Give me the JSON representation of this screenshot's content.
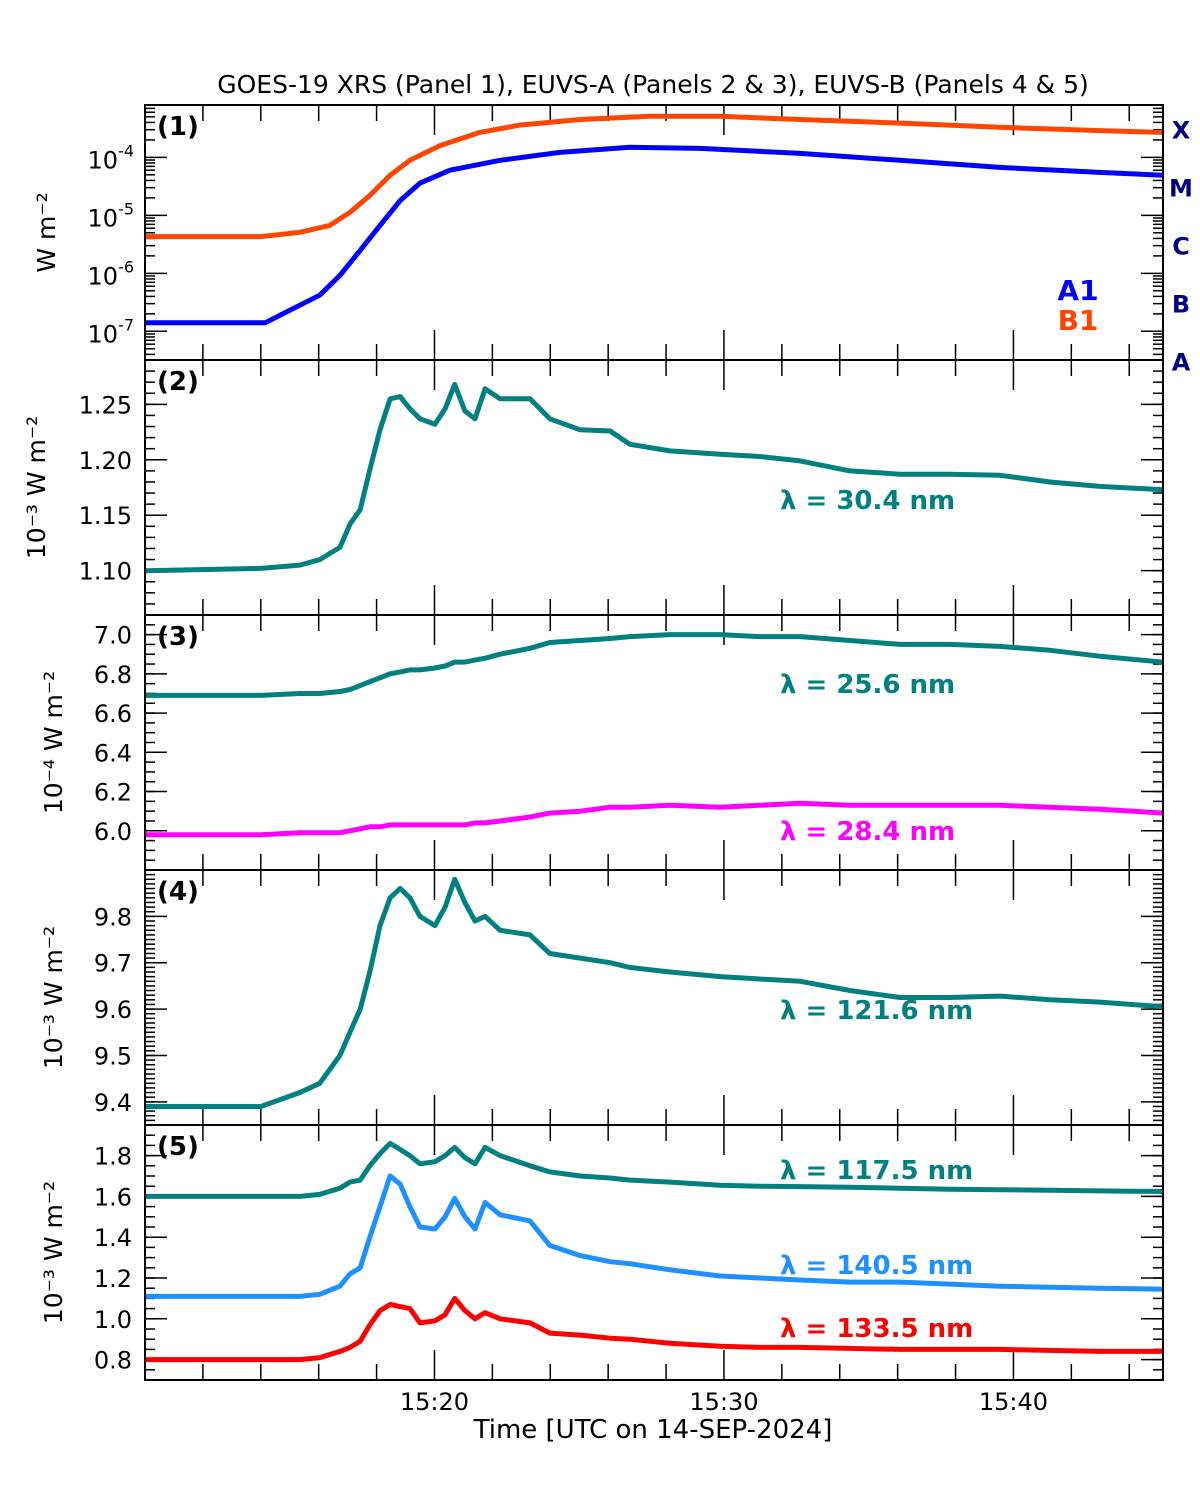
{
  "chart_data": {
    "type": "line",
    "title": "GOES-19 XRS (Panel 1), EUVS-A (Panels 2 & 3), EUVS-B (Panels 4 & 5)",
    "xlabel": "Time [UTC on 14-SEP-2024]",
    "xlim": [
      "15:10:00",
      "15:45:10"
    ],
    "xtick_labels": [
      "15:20",
      "15:30",
      "15:40"
    ],
    "xticks": [
      "15:20:00",
      "15:30:00",
      "15:40:00"
    ],
    "grid": false,
    "panels": [
      {
        "panel_label": "(1)",
        "ylabel": "W m⁻²",
        "yscale": "log",
        "ylim": [
          3.2e-08,
          0.0008
        ],
        "ytick_exponents": [
          -4,
          -5,
          -6,
          -7
        ],
        "ytick_base": "10",
        "flare_classes": [
          "X",
          "M",
          "C",
          "B",
          "A"
        ],
        "legend": [
          "A1",
          "B1"
        ],
        "series": [
          {
            "name": "B1",
            "color": "#ff4500",
            "x": [
              "15:10:00",
              "15:14:00",
              "15:15:21",
              "15:16:23",
              "15:17:05",
              "15:17:46",
              "15:18:28",
              "15:19:09",
              "15:20:12",
              "15:21:34",
              "15:22:57",
              "15:25:02",
              "15:27:26",
              "15:29:52",
              "15:32:38",
              "15:36:05",
              "15:39:32",
              "15:42:59",
              "15:45:10"
            ],
            "y": [
              4.3e-06,
              4.3e-06,
              5.1e-06,
              6.7e-06,
              1.13e-05,
              2.2e-05,
              4.9e-05,
              8.9e-05,
              0.00016,
              0.00027,
              0.00036,
              0.00045,
              0.00051,
              0.00051,
              0.00045,
              0.00039,
              0.00033,
              0.00029,
              0.00027
            ]
          },
          {
            "name": "A1",
            "color": "#0000ff",
            "x": [
              "15:10:00",
              "15:14:09",
              "15:15:00",
              "15:16:02",
              "15:16:44",
              "15:17:26",
              "15:18:07",
              "15:18:49",
              "15:19:30",
              "15:20:32",
              "15:22:16",
              "15:24:20",
              "15:26:45",
              "15:29:10",
              "15:32:38",
              "15:36:05",
              "15:39:32",
              "15:42:59",
              "15:45:10"
            ],
            "y": [
              1.4e-07,
              1.4e-07,
              2.3e-07,
              4.2e-07,
              9.2e-07,
              2.5e-06,
              6.7e-06,
              1.8e-05,
              3.6e-05,
              6e-05,
              8.9e-05,
              0.000122,
              0.000149,
              0.000143,
              0.000117,
              8.9e-05,
              6.7e-05,
              5.5e-05,
              4.9e-05
            ]
          }
        ]
      },
      {
        "panel_label": "(2)",
        "ylabel": "10⁻³ W m⁻²",
        "yscale": "linear",
        "ylim": [
          1.06,
          1.29
        ],
        "yticks": [
          1.1,
          1.15,
          1.2,
          1.25
        ],
        "ytick_labels": [
          "1.10",
          "1.15",
          "1.20",
          "1.25"
        ],
        "series": [
          {
            "name": "λ = 30.4 nm",
            "color": "#008080",
            "y": [
              1.1,
              1.102,
              1.105,
              1.11,
              1.121,
              1.142,
              1.155,
              1.191,
              1.227,
              1.255,
              1.257,
              1.246,
              1.237,
              1.232,
              1.246,
              1.268,
              1.244,
              1.237,
              1.264,
              1.255,
              1.255,
              1.237,
              1.227,
              1.226,
              1.214,
              1.208,
              1.205,
              1.203,
              1.199,
              1.19,
              1.187,
              1.187,
              1.186,
              1.18,
              1.176,
              1.173
            ]
          }
        ]
      },
      {
        "panel_label": "(3)",
        "ylabel": "10⁻⁴ W m⁻²",
        "yscale": "linear",
        "ylim": [
          5.8,
          7.1
        ],
        "yticks": [
          6.0,
          6.2,
          6.4,
          6.6,
          6.8,
          7.0
        ],
        "ytick_labels": [
          "6.0",
          "6.2",
          "6.4",
          "6.6",
          "6.8",
          "7.0"
        ],
        "series": [
          {
            "name": "λ = 25.6 nm",
            "color": "#008080",
            "y": [
              6.69,
              6.69,
              6.7,
              6.7,
              6.71,
              6.72,
              6.74,
              6.76,
              6.78,
              6.8,
              6.81,
              6.82,
              6.82,
              6.83,
              6.84,
              6.86,
              6.86,
              6.87,
              6.88,
              6.9,
              6.93,
              6.96,
              6.97,
              6.98,
              6.99,
              7.0,
              7.0,
              6.99,
              6.99,
              6.97,
              6.95,
              6.95,
              6.94,
              6.92,
              6.89,
              6.86
            ]
          },
          {
            "name": "λ = 28.4 nm",
            "color": "#ff00ff",
            "y": [
              5.98,
              5.98,
              5.99,
              5.99,
              5.99,
              6.0,
              6.01,
              6.02,
              6.02,
              6.03,
              6.03,
              6.03,
              6.03,
              6.03,
              6.03,
              6.03,
              6.03,
              6.04,
              6.04,
              6.05,
              6.07,
              6.09,
              6.1,
              6.12,
              6.12,
              6.13,
              6.12,
              6.13,
              6.14,
              6.13,
              6.13,
              6.13,
              6.13,
              6.12,
              6.11,
              6.09
            ]
          }
        ]
      },
      {
        "panel_label": "(4)",
        "ylabel": "10⁻³ W m⁻²",
        "yscale": "linear",
        "ylim": [
          9.35,
          9.9
        ],
        "yticks": [
          9.4,
          9.5,
          9.6,
          9.7,
          9.8
        ],
        "ytick_labels": [
          "9.4",
          "9.5",
          "9.6",
          "9.7",
          "9.8"
        ],
        "series": [
          {
            "name": "λ = 121.6 nm",
            "color": "#008080",
            "y": [
              9.39,
              9.39,
              9.42,
              9.44,
              9.5,
              9.55,
              9.6,
              9.68,
              9.78,
              9.84,
              9.86,
              9.84,
              9.8,
              9.78,
              9.82,
              9.88,
              9.83,
              9.79,
              9.8,
              9.77,
              9.76,
              9.72,
              9.71,
              9.7,
              9.69,
              9.68,
              9.67,
              9.665,
              9.66,
              9.64,
              9.625,
              9.625,
              9.628,
              9.62,
              9.615,
              9.605
            ]
          }
        ]
      },
      {
        "panel_label": "(5)",
        "ylabel": "10⁻³ W m⁻²",
        "yscale": "linear",
        "ylim": [
          0.7,
          1.95
        ],
        "yticks": [
          0.8,
          1.0,
          1.2,
          1.4,
          1.6,
          1.8
        ],
        "ytick_labels": [
          "0.8",
          "1.0",
          "1.2",
          "1.4",
          "1.6",
          "1.8"
        ],
        "series": [
          {
            "name": "λ = 117.5 nm",
            "color": "#008080",
            "y": [
              1.6,
              1.6,
              1.6,
              1.61,
              1.64,
              1.67,
              1.68,
              1.75,
              1.81,
              1.86,
              1.83,
              1.8,
              1.76,
              1.77,
              1.8,
              1.84,
              1.79,
              1.76,
              1.84,
              1.8,
              1.75,
              1.72,
              1.7,
              1.69,
              1.68,
              1.67,
              1.655,
              1.65,
              1.648,
              1.645,
              1.64,
              1.635,
              1.633,
              1.63,
              1.627,
              1.624
            ]
          },
          {
            "name": "λ = 140.5 nm",
            "color": "#1e90ff",
            "y": [
              1.11,
              1.11,
              1.11,
              1.12,
              1.16,
              1.22,
              1.25,
              1.4,
              1.55,
              1.7,
              1.66,
              1.55,
              1.45,
              1.44,
              1.5,
              1.59,
              1.5,
              1.44,
              1.57,
              1.51,
              1.48,
              1.36,
              1.31,
              1.28,
              1.27,
              1.24,
              1.21,
              1.2,
              1.19,
              1.18,
              1.18,
              1.17,
              1.16,
              1.155,
              1.15,
              1.145
            ]
          },
          {
            "name": "λ = 133.5 nm",
            "color": "#ff0000",
            "y": [
              0.8,
              0.8,
              0.8,
              0.81,
              0.84,
              0.86,
              0.89,
              0.97,
              1.04,
              1.07,
              1.06,
              1.05,
              0.98,
              0.99,
              1.02,
              1.1,
              1.04,
              1.0,
              1.03,
              1.0,
              0.98,
              0.93,
              0.92,
              0.905,
              0.9,
              0.88,
              0.865,
              0.86,
              0.86,
              0.855,
              0.85,
              0.85,
              0.85,
              0.845,
              0.84,
              0.84
            ]
          }
        ]
      }
    ],
    "euv_time_grid": [
      "15:10:00",
      "15:14:00",
      "15:15:21",
      "15:16:02",
      "15:16:44",
      "15:17:05",
      "15:17:26",
      "15:17:46",
      "15:18:07",
      "15:18:28",
      "15:18:49",
      "15:19:09",
      "15:19:30",
      "15:20:01",
      "15:20:22",
      "15:20:42",
      "15:21:03",
      "15:21:24",
      "15:21:45",
      "15:22:16",
      "15:23:18",
      "15:23:59",
      "15:25:02",
      "15:26:04",
      "15:26:45",
      "15:28:08",
      "15:29:52",
      "15:31:14",
      "15:32:38",
      "15:34:21",
      "15:36:05",
      "15:37:48",
      "15:39:32",
      "15:41:16",
      "15:42:59",
      "15:45:10"
    ]
  }
}
